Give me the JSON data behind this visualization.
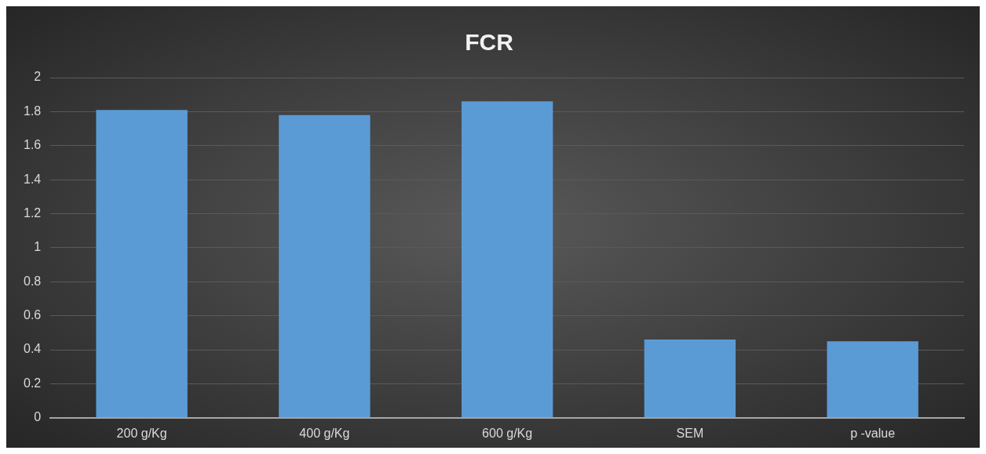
{
  "chart_data": {
    "type": "bar",
    "title": "FCR",
    "categories": [
      "200 g/Kg",
      "400 g/Kg",
      "600 g/Kg",
      "SEM",
      "p -value"
    ],
    "values": [
      1.81,
      1.78,
      1.86,
      0.46,
      0.45
    ],
    "color": "#5b9bd5",
    "ylim": [
      0,
      2
    ],
    "yticks": [
      0,
      0.2,
      0.4,
      0.6,
      0.8,
      1,
      1.2,
      1.4,
      1.6,
      1.8,
      2
    ],
    "grid": "y"
  }
}
